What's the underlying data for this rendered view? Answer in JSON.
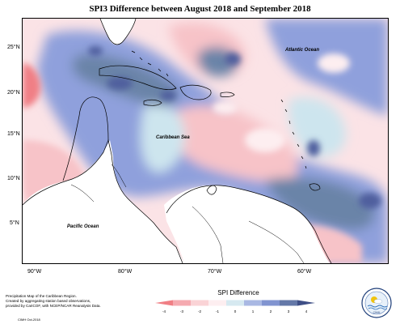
{
  "title": "SPI3 Difference between August 2018 and September 2018",
  "latitude_labels": [
    "25°N",
    "20°N",
    "15°N",
    "10°N",
    "5°N"
  ],
  "longitude_labels": [
    "90°W",
    "80°W",
    "70°W",
    "60°W"
  ],
  "place_labels": {
    "atlantic": "Atlantic Ocean",
    "caribbean": "Caribbean Sea",
    "pacific": "Pacific Ocean"
  },
  "credits": {
    "line1": "Precipitation Map of the Caribbean Region.",
    "line2": "Created by aggregating station based observations,",
    "line3": "provided by CariCOF, with NCEP/NCAR Reanalysis Data.",
    "date": "CIMH Oct-2018"
  },
  "legend": {
    "title": "SPI Difference",
    "ticks": [
      "-4",
      "-3",
      "-2",
      "-1",
      "0",
      "1",
      "2",
      "3",
      "4"
    ],
    "colors": [
      "#f07f85",
      "#f5aab0",
      "#fad3d6",
      "#fdeef0",
      "#d6e9f0",
      "#a9b8e3",
      "#8194d0",
      "#6478a8",
      "#3f4f86"
    ]
  },
  "palette": {
    "light_pink": "#fbe3e6",
    "pink": "#f7c3c8",
    "red": "#f07f85",
    "light_blue": "#cde5ee",
    "blue": "#8fa0dc",
    "slate": "#6a84a8",
    "navy": "#4f5f9e"
  },
  "logo": {
    "label": "CIMH"
  }
}
